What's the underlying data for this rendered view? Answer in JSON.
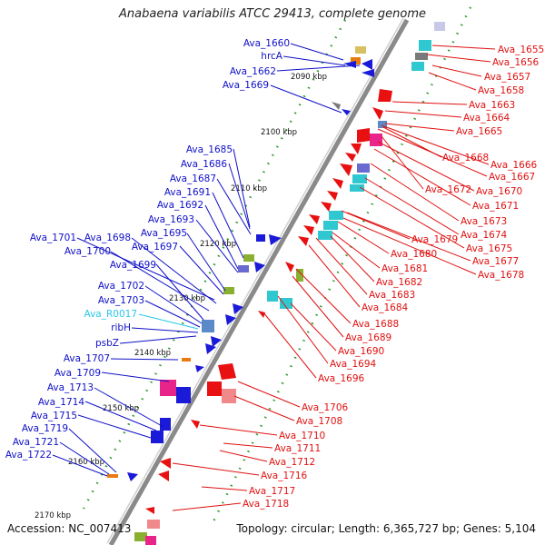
{
  "title": "Anabaena variabilis ATCC 29413, complete genome",
  "accession": "Accession: NC_007413",
  "summary": "Topology: circular; Length: 6,365,727 bp; Genes: 5,104",
  "colors": {
    "left_label": "#1010c8",
    "left_label_special": "#28c8e8",
    "right_label": "#e01010",
    "backbone": "#8a8a8a",
    "tick_dots": "#2a9a2a"
  },
  "scale_ticks": [
    "2090 kbp",
    "2100 kbp",
    "2110 kbp",
    "2120 kbp",
    "2130 kbp",
    "2140 kbp",
    "2150 kbp",
    "2160 kbp",
    "2170 kbp"
  ],
  "left_genes": [
    "Ava_1660",
    "hrcA",
    "Ava_1662",
    "Ava_1669",
    "Ava_1685",
    "Ava_1686",
    "Ava_1687",
    "Ava_1691",
    "Ava_1692",
    "Ava_1693",
    "Ava_1695",
    "Ava_1701",
    "Ava_1698",
    "Ava_1697",
    "Ava_1700",
    "Ava_1699",
    "Ava_1702",
    "Ava_1703",
    "Ava_R0017",
    "ribH",
    "psbZ",
    "Ava_1707",
    "Ava_1709",
    "Ava_1713",
    "Ava_1714",
    "Ava_1715",
    "Ava_1719",
    "Ava_1721",
    "Ava_1722"
  ],
  "right_genes": [
    "Ava_1655",
    "Ava_1656",
    "Ava_1657",
    "Ava_1658",
    "Ava_1663",
    "Ava_1664",
    "Ava_1665",
    "Ava_1668",
    "Ava_1666",
    "Ava_1667",
    "Ava_1672",
    "Ava_1670",
    "Ava_1671",
    "Ava_1673",
    "Ava_1674",
    "Ava_1679",
    "Ava_1675",
    "Ava_1680",
    "Ava_1677",
    "Ava_1681",
    "Ava_1678",
    "Ava_1682",
    "Ava_1683",
    "Ava_1684",
    "Ava_1688",
    "Ava_1689",
    "Ava_1690",
    "Ava_1694",
    "Ava_1696",
    "Ava_1706",
    "Ava_1708",
    "Ava_1710",
    "Ava_1711",
    "Ava_1712",
    "Ava_1716",
    "Ava_1717",
    "Ava_1718"
  ],
  "features": [
    {
      "name": "feature-block",
      "color": "#d8c060"
    },
    {
      "name": "feature-block",
      "color": "#30c8d0"
    },
    {
      "name": "feature-block",
      "color": "#e87a10"
    },
    {
      "name": "feature-block",
      "color": "#7a7a7a"
    },
    {
      "name": "feature-block",
      "color": "#e8248a"
    },
    {
      "name": "feature-block",
      "color": "#8ab030"
    },
    {
      "name": "feature-block",
      "color": "#6a6ad0"
    },
    {
      "name": "feature-block",
      "color": "#5a8ac8"
    },
    {
      "name": "feature-block",
      "color": "#f08a8a"
    },
    {
      "name": "feature-block",
      "color": "#c8c8e8"
    }
  ]
}
